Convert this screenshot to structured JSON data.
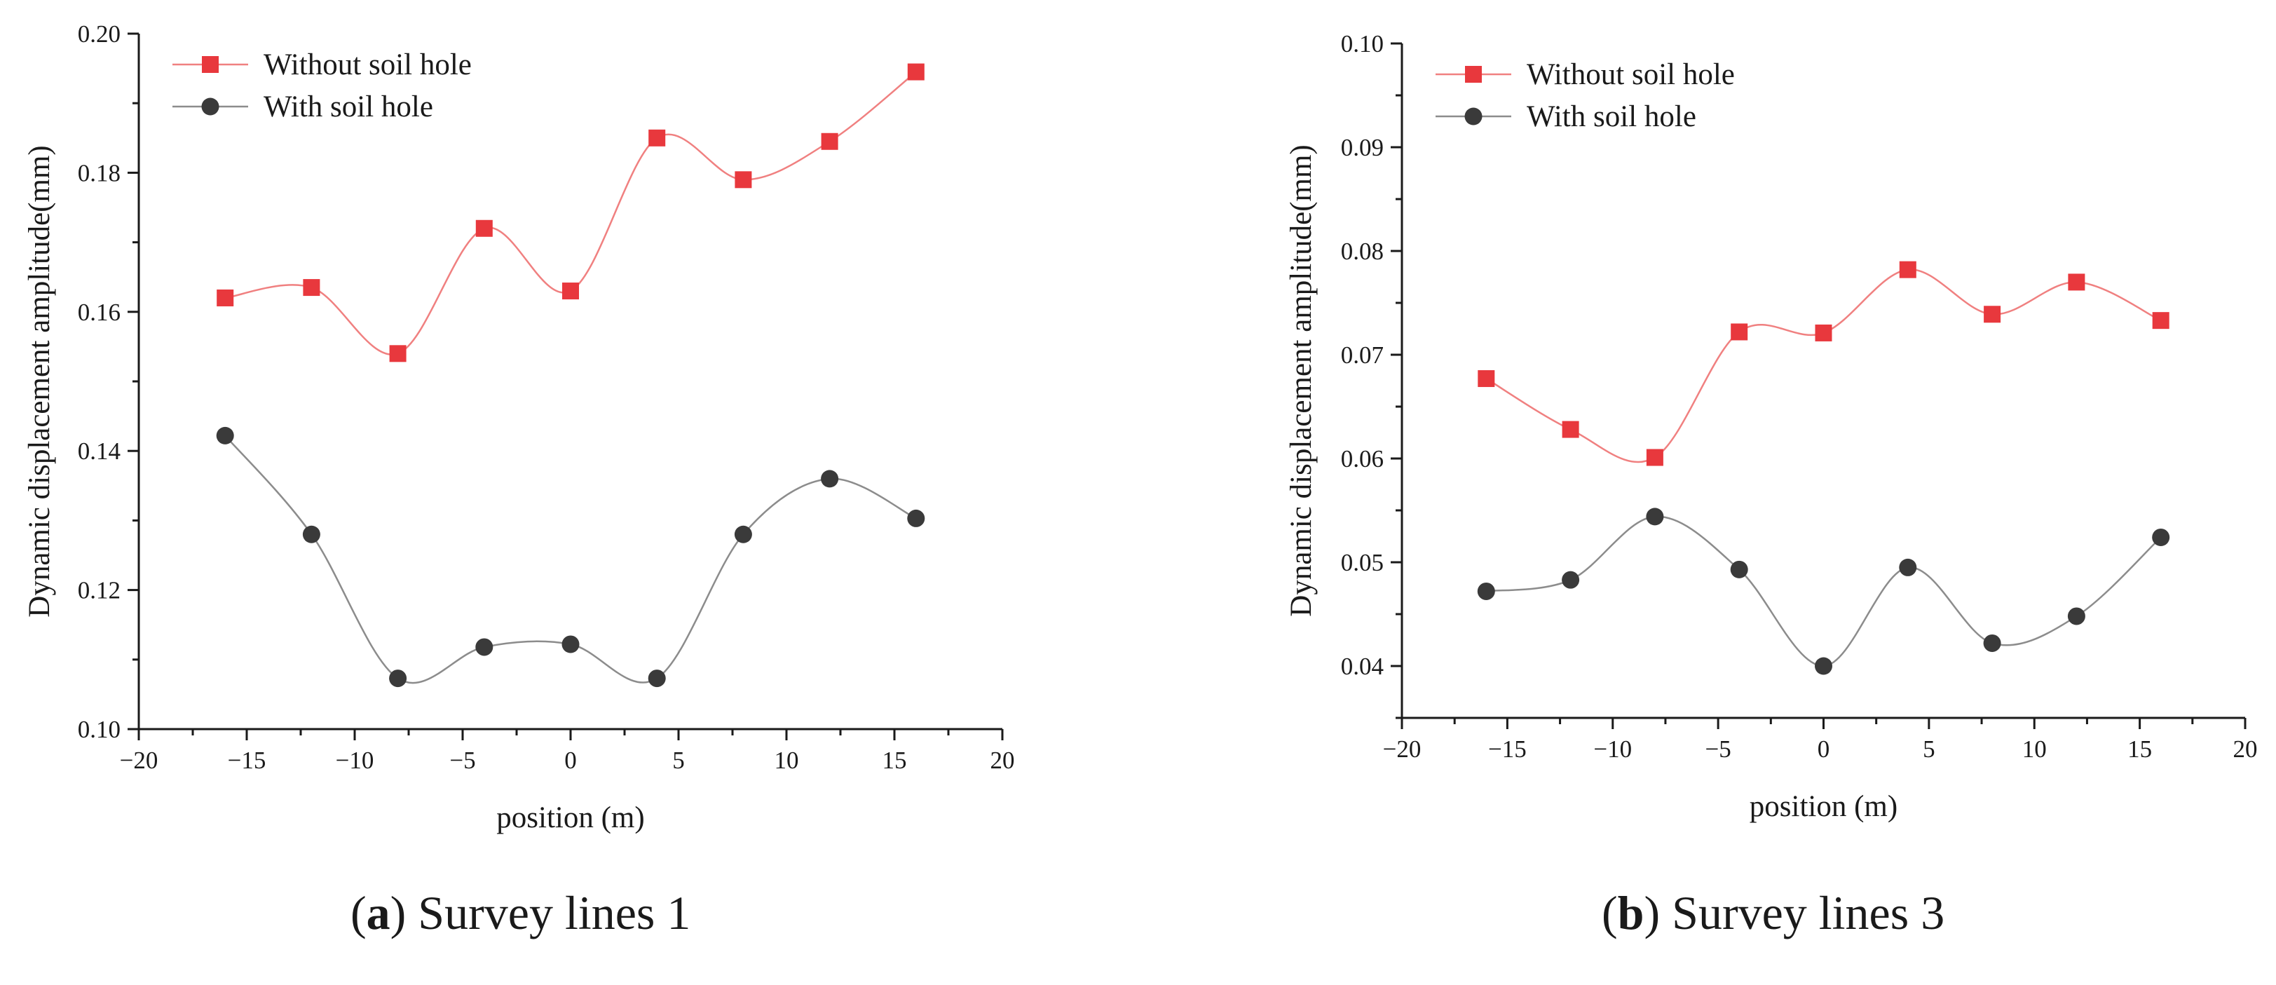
{
  "chart_data": [
    {
      "type": "line",
      "caption": {
        "letter": "a",
        "text": ") Survey lines 1"
      },
      "xlabel": "position (m)",
      "ylabel": "Dynamic displacement amplitude(mm)",
      "xlim": [
        -20,
        20
      ],
      "ylim": [
        0.1,
        0.2
      ],
      "xticks": [
        "−20",
        "−15",
        "−10",
        "−5",
        "0",
        "5",
        "10",
        "15",
        "20"
      ],
      "yticks": [
        "0.10",
        "0.12",
        "0.14",
        "0.16",
        "0.18",
        "0.20"
      ],
      "grid": false,
      "legend_position": "top-left",
      "x": [
        -16,
        -12,
        -8,
        -4,
        0,
        4,
        8,
        12,
        16
      ],
      "series": [
        {
          "name": "Without soil hole",
          "color": "#e8383d",
          "line_color": "#f08080",
          "marker": "square",
          "values": [
            0.162,
            0.1635,
            0.154,
            0.172,
            0.163,
            0.185,
            0.179,
            0.1845,
            0.1945
          ]
        },
        {
          "name": "With soil hole",
          "color": "#3a3a3a",
          "line_color": "#8c8c8c",
          "marker": "circle",
          "values": [
            0.1422,
            0.128,
            0.1073,
            0.1118,
            0.1122,
            0.1073,
            0.128,
            0.136,
            0.1303
          ]
        }
      ]
    },
    {
      "type": "line",
      "caption": {
        "letter": "b",
        "text": ") Survey lines 3"
      },
      "xlabel": "position (m)",
      "ylabel": "Dynamic displacement amplitude(mm)",
      "xlim": [
        -20,
        20
      ],
      "ylim": [
        0.035,
        0.1
      ],
      "xticks": [
        "−20",
        "−15",
        "−10",
        "−5",
        "0",
        "5",
        "10",
        "15",
        "20"
      ],
      "yticks": [
        "0.04",
        "0.05",
        "0.06",
        "0.07",
        "0.08",
        "0.09",
        "0.10"
      ],
      "grid": false,
      "legend_position": "top-left",
      "x": [
        -16,
        -12,
        -8,
        -4,
        0,
        4,
        8,
        12,
        16
      ],
      "series": [
        {
          "name": "Without soil hole",
          "color": "#e8383d",
          "line_color": "#f08080",
          "marker": "square",
          "values": [
            0.0677,
            0.0628,
            0.0601,
            0.0722,
            0.0721,
            0.0782,
            0.0739,
            0.077,
            0.0733
          ]
        },
        {
          "name": "With soil hole",
          "color": "#3a3a3a",
          "line_color": "#8c8c8c",
          "marker": "circle",
          "values": [
            0.0472,
            0.0483,
            0.0544,
            0.0493,
            0.04,
            0.0495,
            0.0422,
            0.0448,
            0.0524
          ]
        }
      ]
    }
  ]
}
